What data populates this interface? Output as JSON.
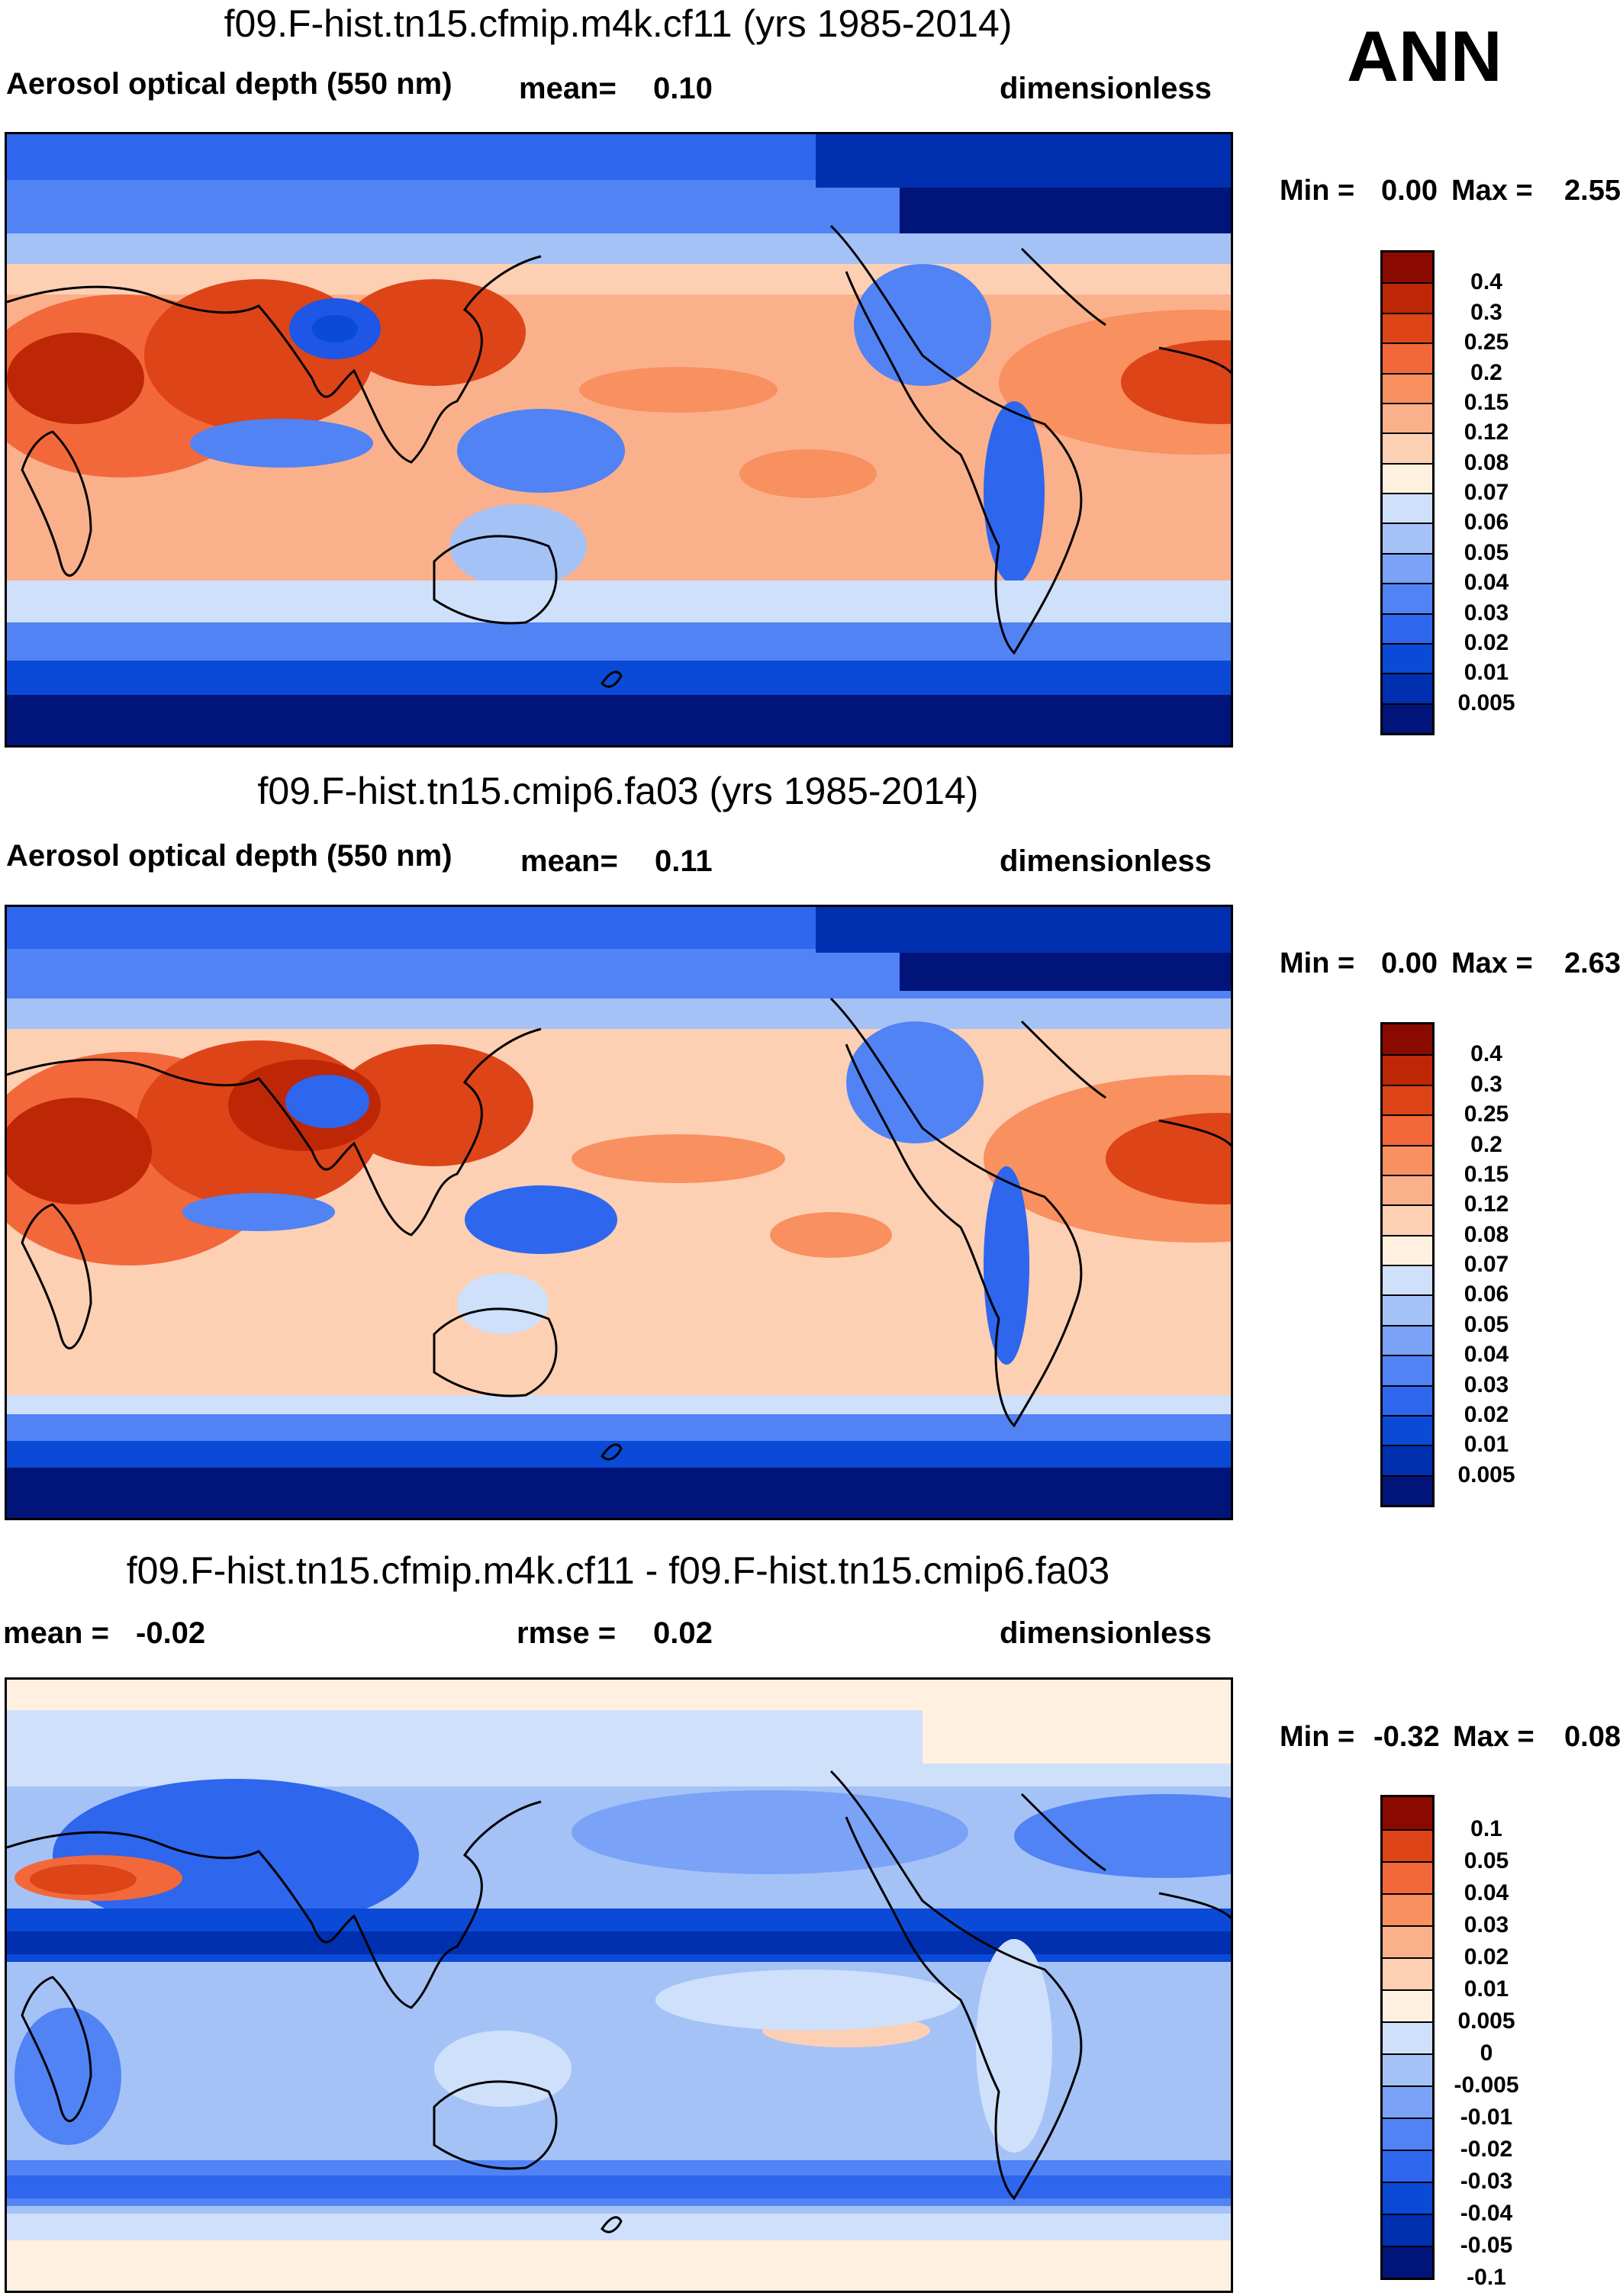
{
  "season": "ANN",
  "colors": {
    "aod_scale": [
      "#00147a",
      "#0030b0",
      "#0a4ad6",
      "#2e66ee",
      "#5183f5",
      "#7aa2f7",
      "#a5c2f7",
      "#cfe0fb",
      "#fff0e0",
      "#fdd0b4",
      "#fbb08c",
      "#f8905f",
      "#f2683a",
      "#dd4418",
      "#be2706",
      "#8a0a00"
    ],
    "diff_scale": [
      "#00147a",
      "#0030b0",
      "#0a4ad6",
      "#2e66ee",
      "#5183f5",
      "#7aa2f7",
      "#a5c2f7",
      "#cfe0fb",
      "#fff0e0",
      "#fdd0b4",
      "#fbb08c",
      "#f8905f",
      "#f2683a",
      "#dd4418",
      "#8a0a00"
    ],
    "coast": "#000000"
  },
  "panels": [
    {
      "title": "f09.F-hist.tn15.cfmip.m4k.cf11 (yrs 1985-2014)",
      "variable": "Aerosol optical depth (550 nm)",
      "mean_label": "mean=",
      "mean_value": "0.10",
      "units": "dimensionless",
      "min_label": "Min =",
      "min_value": "0.00",
      "max_label": "Max =",
      "max_value": "2.55",
      "levels": [
        "0.4",
        "0.3",
        "0.25",
        "0.2",
        "0.15",
        "0.12",
        "0.08",
        "0.07",
        "0.06",
        "0.05",
        "0.04",
        "0.03",
        "0.02",
        "0.01",
        "0.005"
      ]
    },
    {
      "title": "f09.F-hist.tn15.cmip6.fa03 (yrs 1985-2014)",
      "variable": "Aerosol optical depth (550 nm)",
      "mean_label": "mean=",
      "mean_value": "0.11",
      "units": "dimensionless",
      "min_label": "Min =",
      "min_value": "0.00",
      "max_label": "Max =",
      "max_value": "2.63",
      "levels": [
        "0.4",
        "0.3",
        "0.25",
        "0.2",
        "0.15",
        "0.12",
        "0.08",
        "0.07",
        "0.06",
        "0.05",
        "0.04",
        "0.03",
        "0.02",
        "0.01",
        "0.005"
      ]
    },
    {
      "title": "f09.F-hist.tn15.cfmip.m4k.cf11 - f09.F-hist.tn15.cmip6.fa03",
      "mean_label": "mean =",
      "mean_value": "-0.02",
      "rmse_label": "rmse =",
      "rmse_value": "0.02",
      "units": "dimensionless",
      "min_label": "Min =",
      "min_value": "-0.32",
      "max_label": "Max =",
      "max_value": "0.08",
      "levels": [
        "0.1",
        "0.05",
        "0.04",
        "0.03",
        "0.02",
        "0.01",
        "0.005",
        "0",
        "-0.005",
        "-0.01",
        "-0.02",
        "-0.03",
        "-0.04",
        "-0.05",
        "-0.1"
      ]
    }
  ]
}
